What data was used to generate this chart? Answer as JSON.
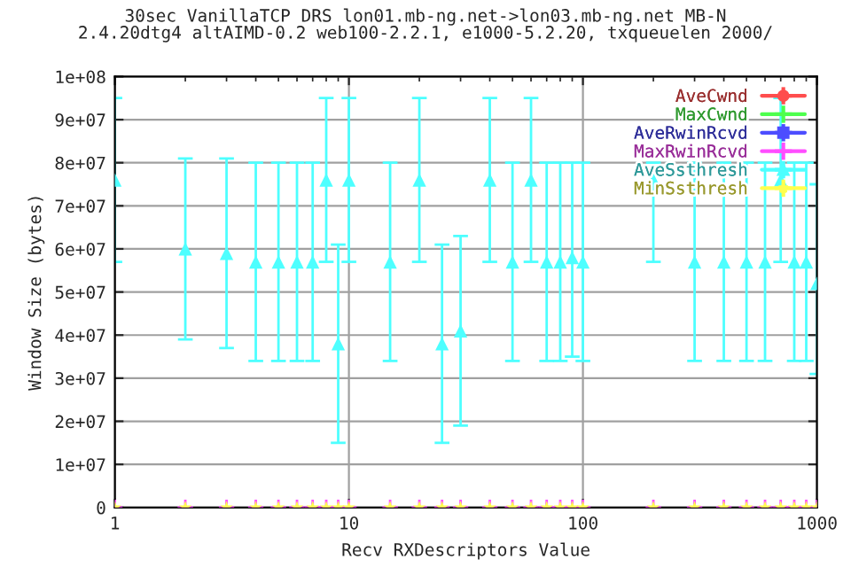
{
  "chart_data": {
    "type": "scatter",
    "title": "30sec VanillaTCP DRS lon01.mb-ng.net->lon03.mb-ng.net MB-N\n2.4.20dtg4 altAIMD-0.2 web100-2.2.1, e1000-5.2.20, txqueuelen 2000/",
    "xlabel": "Recv RXDescriptors Value",
    "ylabel": "Window Size (bytes)",
    "x": [
      1,
      2,
      3,
      4,
      5,
      6,
      7,
      8,
      9,
      10,
      15,
      20,
      25,
      30,
      40,
      50,
      60,
      70,
      80,
      90,
      100,
      200,
      300,
      400,
      500,
      600,
      700,
      800,
      900,
      1000
    ],
    "series": [
      {
        "name": "AveCwnd",
        "color": "#ff4d4d",
        "marker": "circle",
        "values": [
          null,
          null,
          null,
          null,
          null,
          null,
          null,
          null,
          null,
          null,
          null,
          null,
          null,
          null,
          null,
          null,
          null,
          null,
          null,
          null,
          null,
          null,
          null,
          null,
          null,
          null,
          null,
          null,
          null,
          null
        ]
      },
      {
        "name": "MaxCwnd",
        "color": "#4dff4d",
        "marker": "cross",
        "values": [
          null,
          null,
          null,
          null,
          null,
          null,
          null,
          null,
          null,
          null,
          null,
          null,
          null,
          null,
          null,
          null,
          null,
          null,
          null,
          null,
          null,
          null,
          null,
          null,
          null,
          null,
          null,
          null,
          null,
          null
        ]
      },
      {
        "name": "AveRwinRcvd",
        "color": "#4d4dff",
        "marker": "square",
        "values": [
          null,
          null,
          null,
          null,
          null,
          null,
          null,
          null,
          null,
          null,
          null,
          null,
          null,
          null,
          null,
          null,
          null,
          null,
          null,
          null,
          null,
          null,
          null,
          null,
          null,
          null,
          null,
          null,
          null,
          null
        ]
      },
      {
        "name": "MaxRwinRcvd",
        "color": "#ff4dff",
        "marker": "cross",
        "values": [
          0,
          0,
          0,
          0,
          0,
          0,
          0,
          0,
          0,
          0,
          0,
          0,
          0,
          0,
          0,
          0,
          0,
          0,
          0,
          0,
          0,
          0,
          0,
          0,
          0,
          0,
          0,
          0,
          0,
          0
        ]
      },
      {
        "name": "AveSsthresh",
        "color": "#4dffff",
        "marker": "triangle",
        "values": [
          76000000,
          60000000,
          59000000,
          57000000,
          57000000,
          57000000,
          57000000,
          76000000,
          38000000,
          76000000,
          57000000,
          76000000,
          38000000,
          41000000,
          76000000,
          57000000,
          76000000,
          57000000,
          57000000,
          58000000,
          57000000,
          76000000,
          57000000,
          57000000,
          57000000,
          57000000,
          76000000,
          57000000,
          57000000,
          52000000
        ],
        "errors": [
          [
            57000000,
            95000000
          ],
          [
            39000000,
            81000000
          ],
          [
            37000000,
            81000000
          ],
          [
            34000000,
            80000000
          ],
          [
            34000000,
            80000000
          ],
          [
            34000000,
            80000000
          ],
          [
            34000000,
            80000000
          ],
          [
            57000000,
            95000000
          ],
          [
            15000000,
            61000000
          ],
          [
            57000000,
            95000000
          ],
          [
            34000000,
            80000000
          ],
          [
            57000000,
            95000000
          ],
          [
            15000000,
            61000000
          ],
          [
            19000000,
            63000000
          ],
          [
            57000000,
            95000000
          ],
          [
            34000000,
            80000000
          ],
          [
            57000000,
            95000000
          ],
          [
            34000000,
            80000000
          ],
          [
            34000000,
            80000000
          ],
          [
            35000000,
            80000000
          ],
          [
            34000000,
            80000000
          ],
          [
            57000000,
            80000000
          ],
          [
            34000000,
            80000000
          ],
          [
            34000000,
            80000000
          ],
          [
            34000000,
            80000000
          ],
          [
            34000000,
            80000000
          ],
          [
            57000000,
            95000000
          ],
          [
            34000000,
            80000000
          ],
          [
            34000000,
            80000000
          ],
          [
            31000000,
            75000000
          ]
        ]
      },
      {
        "name": "MinSsthresh",
        "color": "#ffff4d",
        "marker": "star",
        "values": [
          0,
          0,
          0,
          0,
          0,
          0,
          0,
          0,
          0,
          0,
          0,
          0,
          0,
          0,
          0,
          0,
          0,
          0,
          0,
          0,
          0,
          0,
          0,
          0,
          0,
          0,
          0,
          0,
          0,
          0
        ]
      }
    ],
    "log": "x",
    "xlim": [
      1,
      1000
    ],
    "xticks": [
      1,
      10,
      100,
      1000
    ],
    "ylim": [
      0,
      100000000
    ],
    "yticks": [
      {
        "value": 0,
        "label": "0"
      },
      {
        "value": 10000000,
        "label": "1e+07"
      },
      {
        "value": 20000000,
        "label": "2e+07"
      },
      {
        "value": 30000000,
        "label": "3e+07"
      },
      {
        "value": 40000000,
        "label": "4e+07"
      },
      {
        "value": 50000000,
        "label": "5e+07"
      },
      {
        "value": 60000000,
        "label": "6e+07"
      },
      {
        "value": 70000000,
        "label": "7e+07"
      },
      {
        "value": 80000000,
        "label": "8e+07"
      },
      {
        "value": 90000000,
        "label": "9e+07"
      },
      {
        "value": 100000000,
        "label": "1e+08"
      }
    ],
    "grid": true,
    "legend": "top right"
  }
}
